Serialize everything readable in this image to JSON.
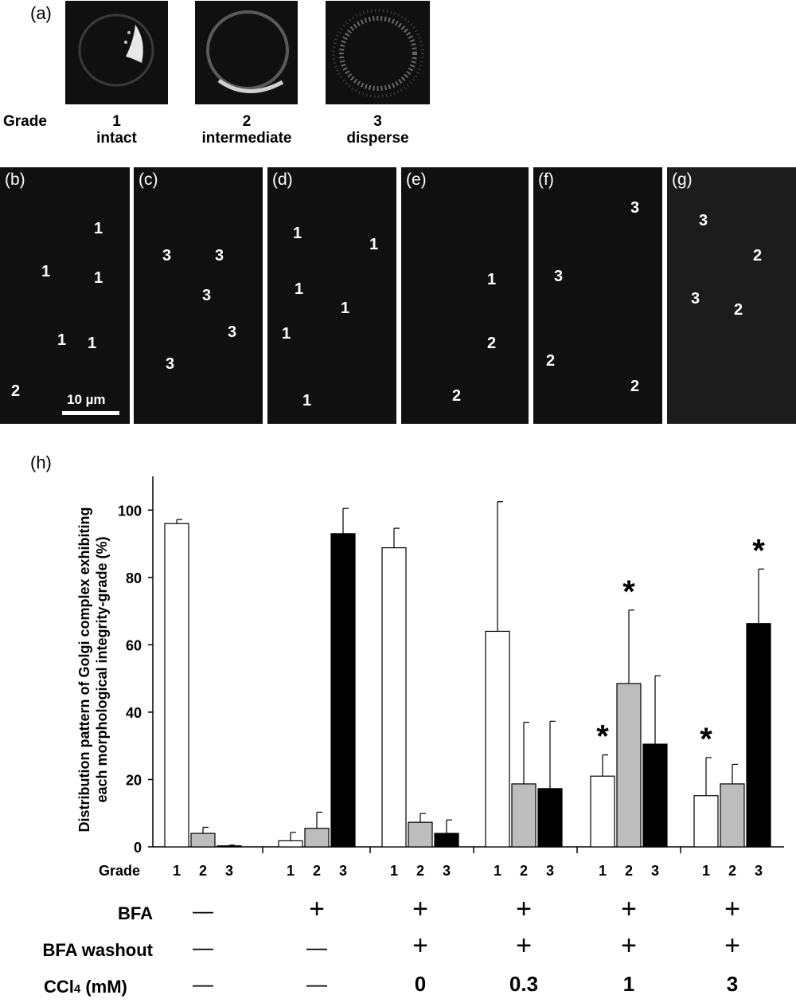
{
  "panel_a": {
    "letter": "(a)",
    "grade_label": "Grade",
    "examples": [
      {
        "number": "1",
        "name": "intact"
      },
      {
        "number": "2",
        "name": "intermediate"
      },
      {
        "number": "3",
        "name": "disperse"
      }
    ]
  },
  "panels": [
    {
      "letter": "(b)",
      "cells": [
        "1",
        "1",
        "1",
        "1",
        "1",
        "2"
      ],
      "scale_bar": "10 µm"
    },
    {
      "letter": "(c)",
      "cells": [
        "3",
        "3",
        "3",
        "3",
        "3"
      ]
    },
    {
      "letter": "(d)",
      "cells": [
        "1",
        "1",
        "1",
        "1",
        "1",
        "1"
      ]
    },
    {
      "letter": "(e)",
      "cells": [
        "1",
        "2",
        "2"
      ]
    },
    {
      "letter": "(f)",
      "cells": [
        "3",
        "3",
        "2",
        "2"
      ]
    },
    {
      "letter": "(g)",
      "cells": [
        "3",
        "2",
        "3",
        "2"
      ]
    }
  ],
  "panel_h": {
    "letter": "(h)",
    "grade_label": "Grade"
  },
  "conditions": {
    "rows": [
      {
        "label": "BFA",
        "values": [
          "—",
          "+",
          "+",
          "+",
          "+",
          "+"
        ]
      },
      {
        "label": "BFA washout",
        "values": [
          "—",
          "—",
          "+",
          "+",
          "+",
          "+"
        ]
      },
      {
        "label_main": "CCl",
        "label_sub": "4",
        "label_tail": " (mM)",
        "values": [
          "—",
          "—",
          "0",
          "0.3",
          "1",
          "3"
        ]
      }
    ]
  },
  "chart_data": {
    "type": "bar",
    "ylabel": "Distribution pattern of Golgi complex exhibiting each morphological integrity-grade (%)",
    "xlabel": "Grade",
    "ylim": [
      0,
      110
    ],
    "yticks": [
      0,
      20,
      40,
      60,
      80,
      100
    ],
    "grid": false,
    "series_colors": {
      "1": "#ffffff",
      "2": "#bdbdbd",
      "3": "#000000"
    },
    "groups": [
      {
        "bars": [
          {
            "grade": "1",
            "value": 96,
            "error": 1.2
          },
          {
            "grade": "2",
            "value": 4,
            "error": 1.8
          },
          {
            "grade": "3",
            "value": 0.3,
            "error": 0.2
          }
        ],
        "significant": []
      },
      {
        "bars": [
          {
            "grade": "1",
            "value": 1.8,
            "error": 2.5
          },
          {
            "grade": "2",
            "value": 5.5,
            "error": 4.8
          },
          {
            "grade": "3",
            "value": 93,
            "error": 7.5
          }
        ],
        "significant": []
      },
      {
        "bars": [
          {
            "grade": "1",
            "value": 88.8,
            "error": 5.8
          },
          {
            "grade": "2",
            "value": 7.3,
            "error": 2.6
          },
          {
            "grade": "3",
            "value": 4,
            "error": 4
          }
        ],
        "significant": []
      },
      {
        "bars": [
          {
            "grade": "1",
            "value": 64,
            "error": 38.5
          },
          {
            "grade": "2",
            "value": 18.7,
            "error": 18.3
          },
          {
            "grade": "3",
            "value": 17.3,
            "error": 20
          }
        ],
        "significant": []
      },
      {
        "bars": [
          {
            "grade": "1",
            "value": 21,
            "error": 6.3
          },
          {
            "grade": "2",
            "value": 48.5,
            "error": 21.8
          },
          {
            "grade": "3",
            "value": 30.5,
            "error": 20.3
          }
        ],
        "significant": [
          "1",
          "2"
        ]
      },
      {
        "bars": [
          {
            "grade": "1",
            "value": 15.2,
            "error": 11.3
          },
          {
            "grade": "2",
            "value": 18.7,
            "error": 5.8
          },
          {
            "grade": "3",
            "value": 66.3,
            "error": 16.2
          }
        ],
        "significant": [
          "1",
          "3"
        ]
      }
    ],
    "significance_marker": "*"
  }
}
